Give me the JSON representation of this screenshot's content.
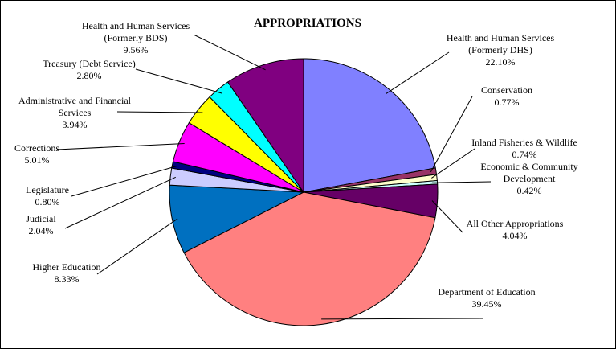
{
  "chart_data": {
    "type": "pie",
    "title": "APPROPRIATIONS",
    "slices": [
      {
        "label": [
          "Health and Human Services",
          "(Formerly DHS)"
        ],
        "pct_text": "22.10%",
        "value": 22.1,
        "color": "#8080ff"
      },
      {
        "label": [
          "Conservation"
        ],
        "pct_text": "0.77%",
        "value": 0.77,
        "color": "#993366"
      },
      {
        "label": [
          "Inland Fisheries & Wildlife"
        ],
        "pct_text": "0.74%",
        "value": 0.74,
        "color": "#ffffcc"
      },
      {
        "label": [
          "Economic & Community",
          "Development"
        ],
        "pct_text": "0.42%",
        "value": 0.42,
        "color": "#ccffff"
      },
      {
        "label": [
          "All Other Appropriations"
        ],
        "pct_text": "4.04%",
        "value": 4.04,
        "color": "#660066"
      },
      {
        "label": [
          "Department of Education"
        ],
        "pct_text": "39.45%",
        "value": 39.45,
        "color": "#ff8080"
      },
      {
        "label": [
          "Higher Education"
        ],
        "pct_text": "8.33%",
        "value": 8.33,
        "color": "#0070c0"
      },
      {
        "label": [
          "Judicial"
        ],
        "pct_text": "2.04%",
        "value": 2.04,
        "color": "#ccccff"
      },
      {
        "label": [
          "Legislature"
        ],
        "pct_text": "0.80%",
        "value": 0.8,
        "color": "#000080"
      },
      {
        "label": [
          "Corrections"
        ],
        "pct_text": "5.01%",
        "value": 5.01,
        "color": "#ff00ff"
      },
      {
        "label": [
          "Administrative and Financial",
          "Services"
        ],
        "pct_text": "3.94%",
        "value": 3.94,
        "color": "#ffff00"
      },
      {
        "label": [
          "Treasury (Debt Service)"
        ],
        "pct_text": "2.80%",
        "value": 2.8,
        "color": "#00ffff"
      },
      {
        "label": [
          "Health and Human Services",
          "(Formerly BDS)"
        ],
        "pct_text": "9.56%",
        "value": 9.56,
        "color": "#800080"
      }
    ]
  }
}
